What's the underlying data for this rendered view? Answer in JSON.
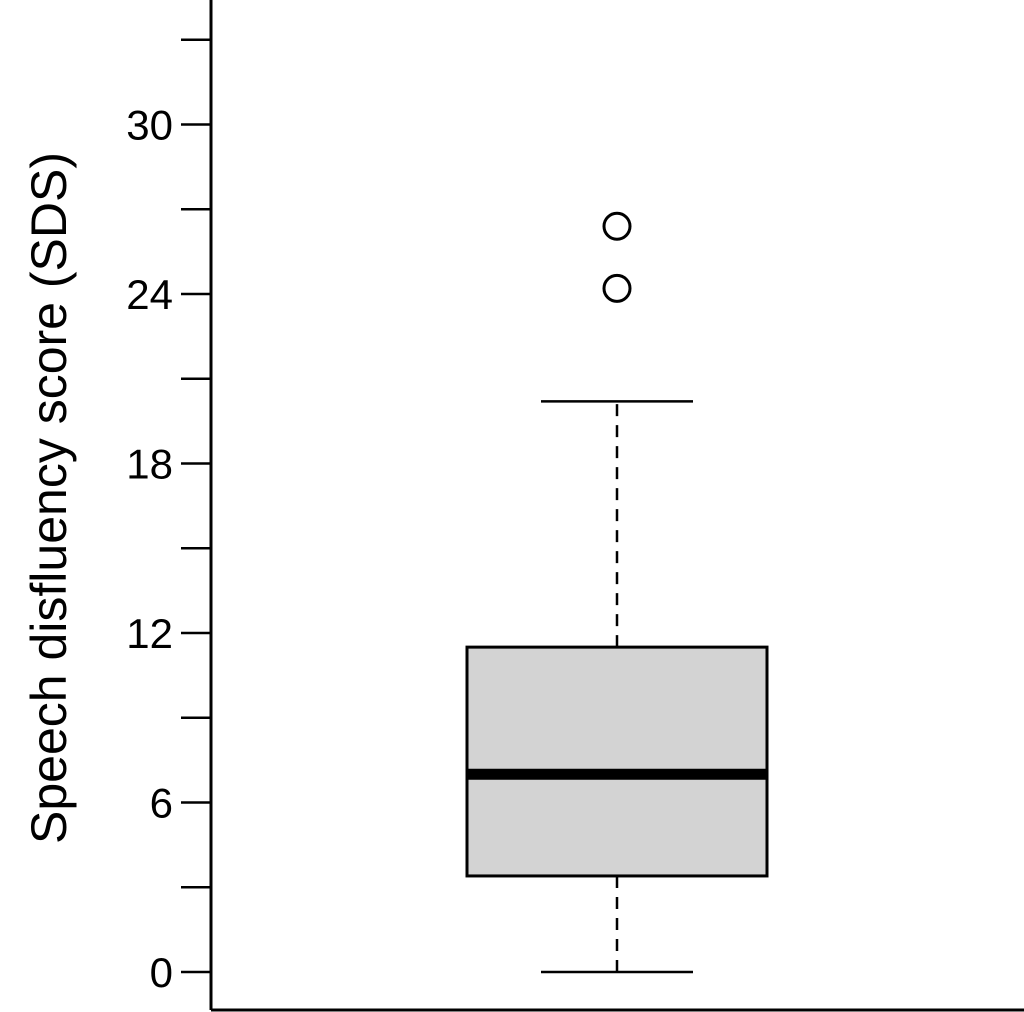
{
  "chart_data": {
    "type": "box",
    "ylabel": "Speech disfluency score (SDS)",
    "ylim": [
      0,
      33.5
    ],
    "yticks": [
      0,
      6,
      12,
      18,
      24,
      30
    ],
    "ytick_labels": [
      "0",
      "6",
      "12",
      "18",
      "24",
      "30"
    ],
    "y_minor_ticks": [
      3,
      9,
      15,
      21,
      27,
      33
    ],
    "box": {
      "min": 0,
      "q1": 3.4,
      "median": 7,
      "q3": 11.5,
      "max": 20.2,
      "outliers": [
        24.2,
        26.4
      ]
    },
    "colors": {
      "box_fill": "#d3d3d3",
      "line": "#000000"
    }
  }
}
